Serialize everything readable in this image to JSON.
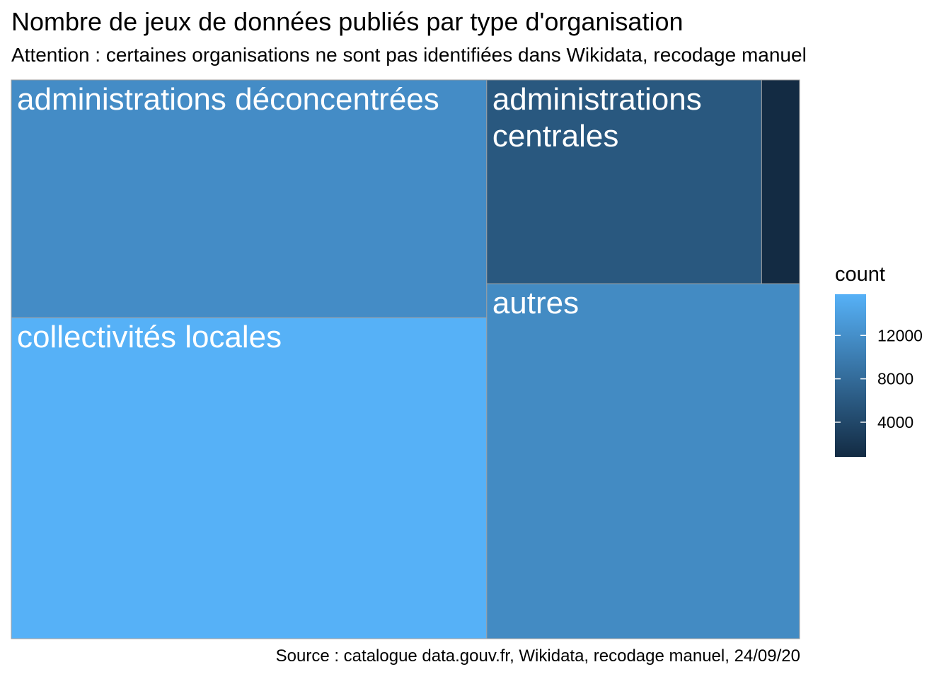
{
  "chart_data": {
    "type": "treemap",
    "title": "Nombre de jeux de données publiés par type d'organisation",
    "subtitle": "Attention : certaines organisations ne sont pas identifiées dans Wikidata, recodage manuel",
    "caption": "Source : catalogue data.gouv.fr, Wikidata, recodage manuel, 24/09/20",
    "tiles": [
      {
        "label": "collectivités locales",
        "value": 15800
      },
      {
        "label": "administrations déconcentrées",
        "value": 11700
      },
      {
        "label": "autres",
        "value": 11500
      },
      {
        "label": "administrations centrales",
        "value": 5800
      },
      {
        "label": "",
        "value": 800
      }
    ],
    "legend": {
      "title": "count",
      "ticks": [
        4000,
        8000,
        12000
      ],
      "range": [
        800,
        15800
      ],
      "color_low": "#132B43",
      "color_high": "#56B1F7"
    }
  }
}
